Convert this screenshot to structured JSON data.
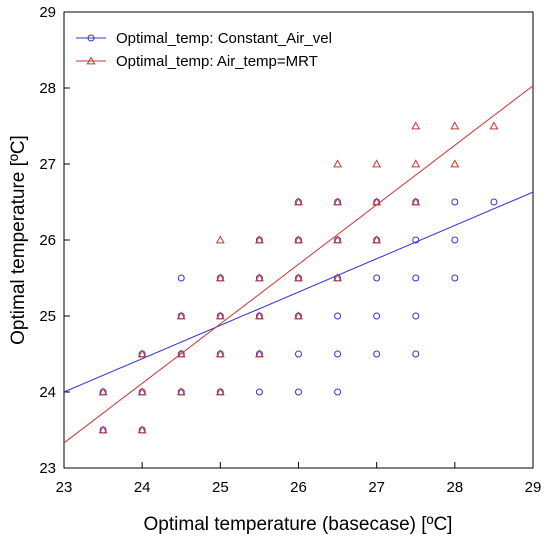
{
  "chart_data": {
    "type": "scatter",
    "title": "",
    "xlabel": "Optimal temperature (basecase) [ºC]",
    "ylabel": "Optimal temperature [ºC]",
    "xlim": [
      23,
      29
    ],
    "ylim": [
      23,
      29
    ],
    "x_ticks": [
      "23",
      "24",
      "25",
      "26",
      "27",
      "28",
      "29"
    ],
    "y_ticks": [
      "23",
      "24",
      "25",
      "26",
      "27",
      "28",
      "29"
    ],
    "grid": false,
    "legend_position": "top-left",
    "series": [
      {
        "name": "Optimal_temp: Constant_Air_vel",
        "marker": "circle",
        "color": "#3333dd",
        "points": [
          [
            23.5,
            23.5
          ],
          [
            23.5,
            24.0
          ],
          [
            24.0,
            23.5
          ],
          [
            24.0,
            24.0
          ],
          [
            24.0,
            24.5
          ],
          [
            24.5,
            24.0
          ],
          [
            24.5,
            24.5
          ],
          [
            24.5,
            25.0
          ],
          [
            24.5,
            25.5
          ],
          [
            25.0,
            24.0
          ],
          [
            25.0,
            24.5
          ],
          [
            25.0,
            25.0
          ],
          [
            25.0,
            25.5
          ],
          [
            25.5,
            24.0
          ],
          [
            25.5,
            24.5
          ],
          [
            25.5,
            25.0
          ],
          [
            25.5,
            25.5
          ],
          [
            25.5,
            26.0
          ],
          [
            26.0,
            24.0
          ],
          [
            26.0,
            24.5
          ],
          [
            26.0,
            25.0
          ],
          [
            26.0,
            25.5
          ],
          [
            26.0,
            26.0
          ],
          [
            26.0,
            26.5
          ],
          [
            26.5,
            24.0
          ],
          [
            26.5,
            24.5
          ],
          [
            26.5,
            25.0
          ],
          [
            26.5,
            25.5
          ],
          [
            26.5,
            26.0
          ],
          [
            26.5,
            26.5
          ],
          [
            27.0,
            24.5
          ],
          [
            27.0,
            25.0
          ],
          [
            27.0,
            25.5
          ],
          [
            27.0,
            26.0
          ],
          [
            27.0,
            26.5
          ],
          [
            27.5,
            24.5
          ],
          [
            27.5,
            25.0
          ],
          [
            27.5,
            25.5
          ],
          [
            27.5,
            26.0
          ],
          [
            27.5,
            26.5
          ],
          [
            28.0,
            25.5
          ],
          [
            28.0,
            26.0
          ],
          [
            28.0,
            26.5
          ],
          [
            28.5,
            26.5
          ]
        ],
        "fit_line": {
          "x": [
            23,
            29
          ],
          "y": [
            24.0,
            26.63
          ]
        }
      },
      {
        "name": "Optimal_temp: Air_temp=MRT",
        "marker": "triangle",
        "color": "#cc3333",
        "points": [
          [
            23.5,
            23.5
          ],
          [
            23.5,
            24.0
          ],
          [
            24.0,
            23.5
          ],
          [
            24.0,
            24.0
          ],
          [
            24.0,
            24.5
          ],
          [
            24.5,
            24.0
          ],
          [
            24.5,
            24.5
          ],
          [
            24.5,
            25.0
          ],
          [
            25.0,
            24.0
          ],
          [
            25.0,
            24.5
          ],
          [
            25.0,
            25.0
          ],
          [
            25.0,
            25.5
          ],
          [
            25.0,
            26.0
          ],
          [
            25.5,
            24.5
          ],
          [
            25.5,
            25.0
          ],
          [
            25.5,
            25.5
          ],
          [
            25.5,
            26.0
          ],
          [
            26.0,
            25.0
          ],
          [
            26.0,
            25.5
          ],
          [
            26.0,
            26.0
          ],
          [
            26.0,
            26.5
          ],
          [
            26.5,
            25.5
          ],
          [
            26.5,
            26.0
          ],
          [
            26.5,
            26.5
          ],
          [
            26.5,
            27.0
          ],
          [
            27.0,
            26.0
          ],
          [
            27.0,
            26.5
          ],
          [
            27.0,
            27.0
          ],
          [
            27.5,
            26.5
          ],
          [
            27.5,
            27.0
          ],
          [
            27.5,
            27.5
          ],
          [
            28.0,
            27.0
          ],
          [
            28.0,
            27.5
          ],
          [
            28.5,
            27.5
          ]
        ],
        "fit_line": {
          "x": [
            23,
            29
          ],
          "y": [
            23.33,
            28.03
          ]
        }
      }
    ]
  }
}
